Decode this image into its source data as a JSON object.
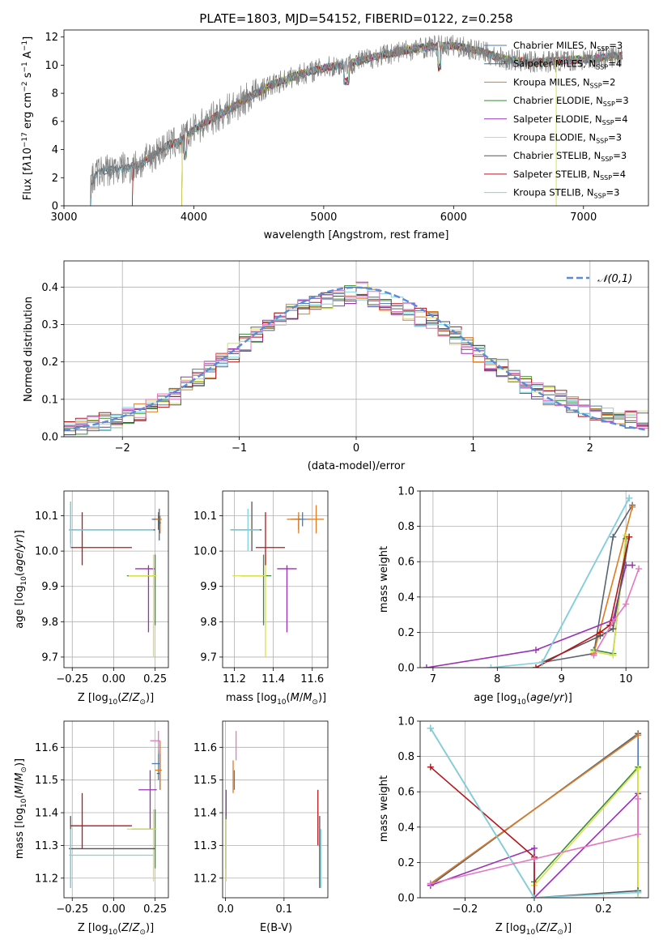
{
  "title": "PLATE=1803, MJD=54152, FIBERID=0122, z=0.258",
  "models": [
    {
      "name": "Chabrier MILES",
      "nssp": "3",
      "color": "#4e79b4"
    },
    {
      "name": "Salpeter MILES",
      "nssp": "4",
      "color": "#5a6573"
    },
    {
      "name": "Kroupa MILES",
      "nssp": "2",
      "color": "#e07b1f"
    },
    {
      "name": "Chabrier ELODIE",
      "nssp": "3",
      "color": "#3a8a3a"
    },
    {
      "name": "Salpeter ELODIE",
      "nssp": "4",
      "color": "#9b30b5"
    },
    {
      "name": "Kroupa ELODIE",
      "nssp": "3",
      "color": "#d9e24a"
    },
    {
      "name": "Chabrier STELIB",
      "nssp": "3",
      "color": "#555555"
    },
    {
      "name": "Salpeter STELIB",
      "nssp": "4",
      "color": "#b5161b"
    },
    {
      "name": "Kroupa STELIB",
      "nssp": "3",
      "color": "#7fd3e0"
    }
  ],
  "chart_data": [
    {
      "type": "line",
      "id": "spectrum",
      "xlabel": "wavelength [Angstrom, rest frame]",
      "ylabel": "Flux [f",
      "xlim": [
        3000,
        7500
      ],
      "ylim": [
        0,
        12.5
      ],
      "xticks": [
        "3000",
        "4000",
        "5000",
        "6000",
        "7000"
      ],
      "yticks": [
        "0",
        "2",
        "4",
        "6",
        "8",
        "10",
        "12"
      ],
      "data_color": "#808080",
      "continuum": {
        "x": [
          3200,
          3250,
          3300,
          3400,
          3500,
          3600,
          3700,
          3800,
          3900,
          4000,
          4100,
          4200,
          4300,
          4400,
          4600,
          4800,
          5000,
          5200,
          5400,
          5600,
          5800,
          6000,
          6200,
          6400,
          6600,
          6800,
          7000,
          7200,
          7300
        ],
        "y": [
          1.4,
          2.3,
          2.5,
          2.6,
          2.7,
          3.0,
          3.7,
          4.3,
          4.6,
          5.4,
          6.0,
          6.5,
          7.0,
          7.6,
          8.6,
          9.3,
          9.8,
          10.1,
          10.6,
          11.0,
          11.3,
          11.4,
          11.0,
          10.4,
          10.2,
          10.3,
          10.4,
          10.6,
          10.7
        ]
      },
      "grid": false,
      "legend": "right"
    },
    {
      "type": "line",
      "id": "residuals",
      "xlabel": "(data-model)/error",
      "ylabel": "Normed distribution",
      "xlim": [
        -2.5,
        2.5
      ],
      "ylim": [
        0,
        0.47
      ],
      "xticks": [
        "−2",
        "−1",
        "0",
        "1",
        "2"
      ],
      "yticks": [
        "0.0",
        "0.1",
        "0.2",
        "0.3",
        "0.4"
      ],
      "bins": [
        -2.5,
        -2.4,
        -2.3,
        -2.2,
        -2.1,
        -2.0,
        -1.9,
        -1.8,
        -1.7,
        -1.6,
        -1.5,
        -1.4,
        -1.3,
        -1.2,
        -1.1,
        -1.0,
        -0.9,
        -0.8,
        -0.7,
        -0.6,
        -0.5,
        -0.4,
        -0.3,
        -0.2,
        -0.1,
        0.0,
        0.1,
        0.2,
        0.3,
        0.4,
        0.5,
        0.6,
        0.7,
        0.8,
        0.9,
        1.0,
        1.1,
        1.2,
        1.3,
        1.4,
        1.5,
        1.6,
        1.7,
        1.8,
        1.9,
        2.0,
        2.1,
        2.2,
        2.3,
        2.4
      ],
      "base": [
        0.025,
        0.03,
        0.035,
        0.04,
        0.045,
        0.055,
        0.065,
        0.08,
        0.09,
        0.11,
        0.135,
        0.16,
        0.18,
        0.2,
        0.225,
        0.25,
        0.27,
        0.3,
        0.31,
        0.33,
        0.345,
        0.355,
        0.36,
        0.37,
        0.38,
        0.39,
        0.37,
        0.36,
        0.35,
        0.335,
        0.32,
        0.31,
        0.29,
        0.27,
        0.24,
        0.22,
        0.2,
        0.185,
        0.165,
        0.14,
        0.12,
        0.11,
        0.1,
        0.085,
        0.075,
        0.065,
        0.06,
        0.05,
        0.045,
        0.045
      ],
      "gaussian_label": "𝒩(0,1)",
      "gaussian_color": "#5b8ad6",
      "grid": true,
      "legend": "top-right"
    },
    {
      "type": "scatter",
      "id": "age-vs-Z",
      "xlabel": "Z [log",
      "ylabel": "age  [log",
      "xlim": [
        -0.3,
        0.33
      ],
      "ylim": [
        9.67,
        10.17
      ],
      "xticks": [
        "−0.25",
        "0.00",
        "0.25"
      ],
      "yticks": [
        "9.7",
        "9.8",
        "9.9",
        "10.0",
        "10.1"
      ],
      "points": [
        {
          "m": 0,
          "x": 0.27,
          "y": 10.09,
          "xerr": [
            0.04,
            0.01
          ],
          "yerr": [
            0.02,
            0.02
          ]
        },
        {
          "m": 1,
          "x": 0.27,
          "y": 10.09,
          "xerr": [
            0.03,
            0.01
          ],
          "yerr": [
            0.03,
            0.01
          ]
        },
        {
          "m": 2,
          "x": 0.28,
          "y": 10.09,
          "xerr": [
            0.03,
            0.01
          ],
          "yerr": [
            0.04,
            0.01
          ]
        },
        {
          "m": 3,
          "x": 0.25,
          "y": 9.93,
          "xerr": [
            0.17,
            0.0
          ],
          "yerr": [
            0.14,
            0.06
          ]
        },
        {
          "m": 4,
          "x": 0.21,
          "y": 9.95,
          "xerr": [
            0.08,
            0.04
          ],
          "yerr": [
            0.18,
            0.01
          ]
        },
        {
          "m": 5,
          "x": 0.24,
          "y": 9.93,
          "xerr": [
            0.15,
            0.02
          ],
          "yerr": [
            0.23,
            0.06
          ]
        },
        {
          "m": 6,
          "x": -0.26,
          "y": 10.06,
          "xerr": [
            0.01,
            0.51
          ],
          "yerr": [
            0.04,
            0.08
          ]
        },
        {
          "m": 7,
          "x": -0.19,
          "y": 10.01,
          "xerr": [
            0.07,
            0.3
          ],
          "yerr": [
            0.05,
            0.1
          ]
        },
        {
          "m": 8,
          "x": -0.26,
          "y": 10.06,
          "xerr": [
            0.01,
            0.5
          ],
          "yerr": [
            0.05,
            0.08
          ]
        },
        {
          "m": 1,
          "x": 0.275,
          "y": 10.08,
          "xerr": [
            0.0,
            0.01
          ],
          "yerr": [
            0.05,
            0.04
          ]
        }
      ],
      "grid": true
    },
    {
      "type": "scatter",
      "id": "age-vs-mass",
      "xlabel": "mass [log",
      "ylabel": "",
      "xlim": [
        11.14,
        11.68
      ],
      "ylim": [
        9.67,
        10.17
      ],
      "xticks": [
        "11.2",
        "11.4",
        "11.6"
      ],
      "yticks": [
        "9.7",
        "9.8",
        "9.9",
        "10.0",
        "10.1"
      ],
      "points": [
        {
          "m": 0,
          "x": 11.55,
          "y": 10.09,
          "xerr": [
            0.04,
            0.04
          ],
          "yerr": [
            0.02,
            0.02
          ]
        },
        {
          "m": 1,
          "x": 11.53,
          "y": 10.09,
          "xerr": [
            0.04,
            0.01
          ],
          "yerr": [
            0.03,
            0.01
          ]
        },
        {
          "m": 2,
          "x": 11.53,
          "y": 10.09,
          "xerr": [
            0.06,
            0.0
          ],
          "yerr": [
            0.04,
            0.02
          ]
        },
        {
          "m": 3,
          "x": 11.35,
          "y": 9.93,
          "xerr": [
            0.12,
            0.04
          ],
          "yerr": [
            0.14,
            0.06
          ]
        },
        {
          "m": 4,
          "x": 11.47,
          "y": 9.95,
          "xerr": [
            0.05,
            0.05
          ],
          "yerr": [
            0.18,
            0.01
          ]
        },
        {
          "m": 5,
          "x": 11.36,
          "y": 9.93,
          "xerr": [
            0.17,
            0.0
          ],
          "yerr": [
            0.23,
            0.06
          ]
        },
        {
          "m": 6,
          "x": 11.29,
          "y": 10.06,
          "xerr": [
            0.11,
            0.05
          ],
          "yerr": [
            0.06,
            0.08
          ]
        },
        {
          "m": 7,
          "x": 11.36,
          "y": 10.01,
          "xerr": [
            0.05,
            0.1
          ],
          "yerr": [
            0.05,
            0.1
          ]
        },
        {
          "m": 8,
          "x": 11.27,
          "y": 10.06,
          "xerr": [
            0.09,
            0.06
          ],
          "yerr": [
            0.06,
            0.06
          ]
        },
        {
          "m": 2,
          "x": 11.62,
          "y": 10.09,
          "xerr": [
            0.05,
            0.04
          ],
          "yerr": [
            0.04,
            0.04
          ]
        }
      ],
      "grid": true
    },
    {
      "type": "line",
      "id": "massweight-vs-age",
      "xlabel": "age  [log",
      "ylabel": "mass weight",
      "xlim": [
        6.8,
        10.35
      ],
      "ylim": [
        0,
        1
      ],
      "xticks": [
        "7",
        "8",
        "9",
        "10"
      ],
      "yticks": [
        "0.0",
        "0.2",
        "0.4",
        "0.6",
        "0.8",
        "1.0"
      ],
      "lines": [
        {
          "m": 0,
          "x": [
            8.7,
            10.05
          ],
          "y": [
            0.03,
            0.96
          ]
        },
        {
          "m": 1,
          "x": [
            8.7,
            9.5,
            9.8,
            10.1
          ],
          "y": [
            0.03,
            0.08,
            0.74,
            0.92
          ]
        },
        {
          "m": 2,
          "x": [
            9.5,
            10.1
          ],
          "y": [
            0.08,
            0.91
          ]
        },
        {
          "m": 3,
          "x": [
            9.5,
            9.8,
            10.0
          ],
          "y": [
            0.1,
            0.08,
            0.73
          ]
        },
        {
          "m": 4,
          "x": [
            6.9,
            8.6,
            9.8,
            10.0,
            10.1
          ],
          "y": [
            0.0,
            0.1,
            0.27,
            0.58,
            0.58
          ]
        },
        {
          "m": 5,
          "x": [
            9.5,
            9.8,
            10.0
          ],
          "y": [
            0.09,
            0.07,
            0.75
          ]
        },
        {
          "m": 6,
          "x": [
            8.7,
            9.6,
            9.8,
            10.05
          ],
          "y": [
            0.03,
            0.18,
            0.22,
            0.74
          ]
        },
        {
          "m": 7,
          "x": [
            8.6,
            9.6,
            9.75,
            10.05
          ],
          "y": [
            0.0,
            0.2,
            0.24,
            0.74
          ]
        },
        {
          "m": 8,
          "x": [
            7.9,
            8.7,
            10.05
          ],
          "y": [
            0.0,
            0.03,
            0.96
          ]
        },
        {
          "m": 2,
          "x": [
            9.5,
            9.8,
            10.0,
            10.2
          ],
          "y": [
            0.07,
            0.26,
            0.36,
            0.56
          ],
          "color": "#e377c2"
        }
      ],
      "grid": true
    },
    {
      "type": "scatter",
      "id": "mass-vs-Z",
      "xlabel": "Z [log",
      "ylabel": "mass [log",
      "xlim": [
        -0.3,
        0.33
      ],
      "ylim": [
        11.14,
        11.68
      ],
      "xticks": [
        "−0.25",
        "0.00",
        "0.25"
      ],
      "yticks": [
        "11.2",
        "11.3",
        "11.4",
        "11.5",
        "11.6"
      ],
      "points": [
        {
          "m": 0,
          "x": 0.27,
          "y": 11.55,
          "xerr": [
            0.04,
            0.01
          ],
          "yerr": [
            0.05,
            0.04
          ]
        },
        {
          "m": 1,
          "x": 0.28,
          "y": 11.52,
          "xerr": [
            0.02,
            0.0
          ],
          "yerr": [
            0.05,
            0.06
          ]
        },
        {
          "m": 2,
          "x": 0.28,
          "y": 11.53,
          "xerr": [
            0.03,
            0.01
          ],
          "yerr": [
            0.06,
            0.09
          ]
        },
        {
          "m": 3,
          "x": 0.25,
          "y": 11.35,
          "xerr": [
            0.14,
            0.0
          ],
          "yerr": [
            0.12,
            0.06
          ]
        },
        {
          "m": 4,
          "x": 0.22,
          "y": 11.47,
          "xerr": [
            0.07,
            0.04
          ],
          "yerr": [
            0.12,
            0.06
          ]
        },
        {
          "m": 5,
          "x": 0.24,
          "y": 11.35,
          "xerr": [
            0.16,
            0.02
          ],
          "yerr": [
            0.16,
            0.06
          ]
        },
        {
          "m": 6,
          "x": -0.26,
          "y": 11.29,
          "xerr": [
            0.01,
            0.51
          ],
          "yerr": [
            0.12,
            0.1
          ]
        },
        {
          "m": 7,
          "x": -0.19,
          "y": 11.36,
          "xerr": [
            0.07,
            0.3
          ],
          "yerr": [
            0.07,
            0.1
          ]
        },
        {
          "m": 8,
          "x": -0.26,
          "y": 11.27,
          "xerr": [
            0.01,
            0.5
          ],
          "yerr": [
            0.1,
            0.08
          ]
        },
        {
          "m": 2,
          "x": 0.27,
          "y": 11.62,
          "xerr": [
            0.05,
            0.01
          ],
          "yerr": [
            0.04,
            0.03
          ],
          "color": "#e377c2"
        }
      ],
      "grid": true
    },
    {
      "type": "scatter",
      "id": "mass-vs-ebv",
      "xlabel": "E(B-V)",
      "ylabel": "",
      "xlim": [
        -0.005,
        0.175
      ],
      "ylim": [
        11.14,
        11.68
      ],
      "xticks": [
        "0.0",
        "0.1"
      ],
      "yticks": [
        "11.2",
        "11.3",
        "11.4",
        "11.5",
        "11.6"
      ],
      "points": [
        {
          "m": 0,
          "x": 0.015,
          "y": 11.5,
          "xerr": [
            0,
            0
          ],
          "yerr": [
            0.03,
            0.03
          ]
        },
        {
          "m": 2,
          "x": 0.013,
          "y": 11.52,
          "xerr": [
            0,
            0
          ],
          "yerr": [
            0.06,
            0.04
          ]
        },
        {
          "m": 3,
          "x": 0.001,
          "y": 11.35,
          "xerr": [
            0,
            0
          ],
          "yerr": [
            0.12,
            0.05
          ]
        },
        {
          "m": 4,
          "x": 0.001,
          "y": 11.43,
          "xerr": [
            0,
            0
          ],
          "yerr": [
            0.04,
            0.04
          ]
        },
        {
          "m": 5,
          "x": 0.001,
          "y": 11.33,
          "xerr": [
            0,
            0
          ],
          "yerr": [
            0.14,
            0.05
          ]
        },
        {
          "m": 6,
          "x": 0.161,
          "y": 11.29,
          "xerr": [
            0,
            0
          ],
          "yerr": [
            0.12,
            0.1
          ]
        },
        {
          "m": 7,
          "x": 0.158,
          "y": 11.38,
          "xerr": [
            0,
            0
          ],
          "yerr": [
            0.08,
            0.09
          ]
        },
        {
          "m": 8,
          "x": 0.163,
          "y": 11.27,
          "xerr": [
            0,
            0
          ],
          "yerr": [
            0.1,
            0.08
          ]
        },
        {
          "m": 2,
          "x": 0.018,
          "y": 11.6,
          "xerr": [
            0,
            0
          ],
          "yerr": [
            0.04,
            0.05
          ],
          "color": "#e377c2"
        }
      ],
      "grid": true
    },
    {
      "type": "line",
      "id": "massweight-vs-Z",
      "xlabel": "Z [log",
      "ylabel": "mass weight",
      "xlim": [
        -0.33,
        0.33
      ],
      "ylim": [
        0,
        1
      ],
      "xticks": [
        "−0.2",
        "0.0",
        "0.2"
      ],
      "yticks": [
        "0.0",
        "0.2",
        "0.4",
        "0.6",
        "0.8",
        "1.0"
      ],
      "lines": [
        {
          "m": 0,
          "x": [
            -0.3,
            0.3,
            0.3
          ],
          "y": [
            0.08,
            0.92,
            0.03
          ]
        },
        {
          "m": 1,
          "x": [
            -0.3,
            0.3
          ],
          "y": [
            0.07,
            0.93
          ]
        },
        {
          "m": 2,
          "x": [
            -0.3,
            0.3
          ],
          "y": [
            0.08,
            0.92
          ]
        },
        {
          "m": 3,
          "x": [
            0.0,
            0.3,
            0.3
          ],
          "y": [
            0.09,
            0.74,
            0.03
          ]
        },
        {
          "m": 4,
          "x": [
            -0.3,
            0.0,
            0.0,
            0.3,
            0.3
          ],
          "y": [
            0.07,
            0.28,
            0.0,
            0.59,
            0.0
          ]
        },
        {
          "m": 5,
          "x": [
            0.0,
            0.3,
            0.3
          ],
          "y": [
            0.07,
            0.73,
            0.0
          ]
        },
        {
          "m": 6,
          "x": [
            -0.3,
            0.0,
            0.0,
            0.3
          ],
          "y": [
            0.96,
            0.0,
            0.0,
            0.04
          ]
        },
        {
          "m": 7,
          "x": [
            -0.3,
            0.0,
            0.0
          ],
          "y": [
            0.74,
            0.23,
            0.0
          ]
        },
        {
          "m": 8,
          "x": [
            -0.3,
            0.0,
            0.3
          ],
          "y": [
            0.96,
            0.0,
            0.03
          ]
        },
        {
          "m": 2,
          "x": [
            -0.3,
            0.0,
            0.3,
            0.3
          ],
          "y": [
            0.08,
            0.22,
            0.36,
            0.56
          ],
          "color": "#e377c2"
        }
      ],
      "grid": true
    }
  ]
}
